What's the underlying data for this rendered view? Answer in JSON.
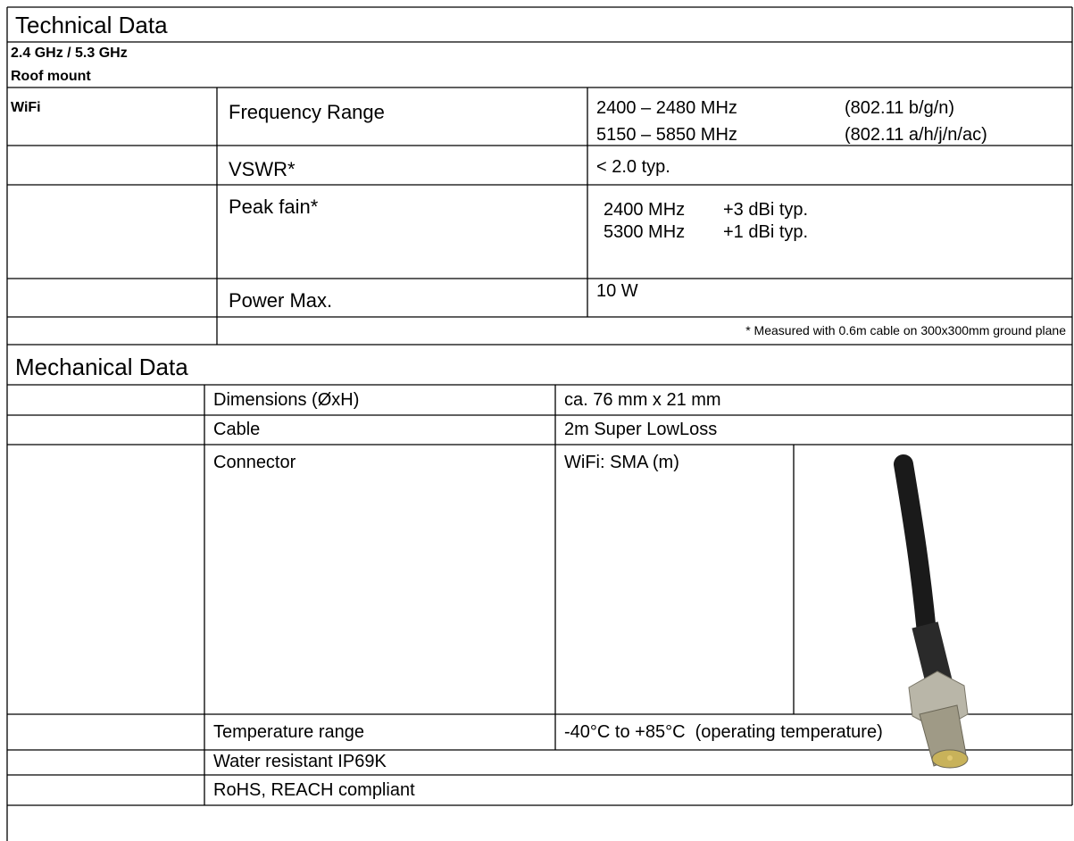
{
  "header": {
    "title": "Technical Data",
    "subtitle": "2.4 GHz / 5.3 GHz",
    "mount": "Roof mount"
  },
  "technical": {
    "group": "WiFi",
    "frequency": {
      "label": "Frequency Range",
      "lines": [
        [
          "2400 – 2480 MHz",
          "(802.11 b/g/n)"
        ],
        [
          "5150 – 5850 MHz",
          "(802.11 a/h/j/n/ac)"
        ]
      ]
    },
    "vswr": {
      "label": "VSWR*",
      "value": "< 2.0 typ."
    },
    "gain": {
      "label": "Peak fain*",
      "lines": [
        [
          "2400 MHz",
          "+3 dBi typ."
        ],
        [
          "5300 MHz",
          "+1 dBi typ."
        ]
      ]
    },
    "power": {
      "label": "Power Max.",
      "value": "10 W"
    },
    "footnote": "* Measured with 0.6m cable on 300x300mm ground plane"
  },
  "mechanical": {
    "title": "Mechanical Data",
    "rows": [
      {
        "label": "Dimensions (ØxH)",
        "value": "ca. 76 mm x 21 mm"
      },
      {
        "label": "Cable",
        "value": "2m Super LowLoss"
      },
      {
        "label": "Connector",
        "value": "WiFi: SMA (m)"
      },
      {
        "label": "Temperature range",
        "value": "-40°C to +85°C  (operating temperature)"
      }
    ],
    "notes": [
      "Water resistant IP69K",
      "RoHS, REACH compliant"
    ]
  }
}
